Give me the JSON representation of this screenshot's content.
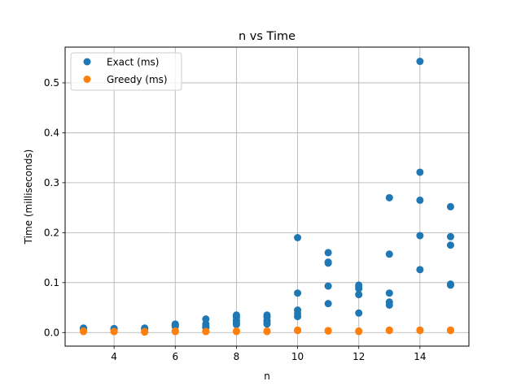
{
  "chart_data": {
    "type": "scatter",
    "title": "n vs Time",
    "xlabel": "n",
    "ylabel": "Time (milliseconds)",
    "xlim": [
      2.4,
      15.6
    ],
    "ylim": [
      -0.0272,
      0.5715
    ],
    "xticks": [
      4,
      6,
      8,
      10,
      12,
      14
    ],
    "yticks": [
      0.0,
      0.1,
      0.2,
      0.3,
      0.4,
      0.5
    ],
    "xtick_labels": [
      "4",
      "6",
      "8",
      "10",
      "12",
      "14"
    ],
    "ytick_labels": [
      "0.0",
      "0.1",
      "0.2",
      "0.3",
      "0.4",
      "0.5"
    ],
    "grid": true,
    "legend_position": "top-left",
    "series": [
      {
        "name": "Exact (ms)",
        "color": "#1f77b4",
        "x": [
          3,
          3,
          3,
          4,
          4,
          4,
          5,
          5,
          5,
          6,
          6,
          6,
          6,
          7,
          7,
          7,
          7,
          7,
          8,
          8,
          8,
          8,
          8,
          9,
          9,
          9,
          9,
          9,
          10,
          10,
          10,
          10,
          10,
          11,
          11,
          11,
          11,
          11,
          12,
          12,
          12,
          12,
          12,
          13,
          13,
          13,
          13,
          13,
          14,
          14,
          14,
          14,
          14,
          15,
          15,
          15,
          15,
          15
        ],
        "y": [
          0.009,
          0.008,
          0.007,
          0.008,
          0.007,
          0.007,
          0.009,
          0.008,
          0.007,
          0.017,
          0.015,
          0.014,
          0.012,
          0.027,
          0.017,
          0.013,
          0.012,
          0.01,
          0.035,
          0.031,
          0.024,
          0.019,
          0.016,
          0.035,
          0.031,
          0.024,
          0.02,
          0.017,
          0.19,
          0.079,
          0.045,
          0.038,
          0.032,
          0.16,
          0.141,
          0.139,
          0.093,
          0.058,
          0.095,
          0.092,
          0.088,
          0.076,
          0.039,
          0.27,
          0.157,
          0.079,
          0.061,
          0.055,
          0.543,
          0.321,
          0.265,
          0.194,
          0.126,
          0.252,
          0.192,
          0.175,
          0.097,
          0.095
        ]
      },
      {
        "name": "Greedy (ms)",
        "color": "#ff7f0e",
        "x": [
          3,
          3,
          4,
          4,
          5,
          5,
          6,
          6,
          7,
          7,
          8,
          8,
          9,
          9,
          10,
          10,
          11,
          11,
          12,
          12,
          13,
          13,
          14,
          14,
          15,
          15
        ],
        "y": [
          0.003,
          0.002,
          0.002,
          0.002,
          0.002,
          0.001,
          0.003,
          0.002,
          0.002,
          0.002,
          0.003,
          0.002,
          0.003,
          0.002,
          0.005,
          0.004,
          0.004,
          0.003,
          0.003,
          0.002,
          0.005,
          0.004,
          0.005,
          0.004,
          0.005,
          0.004
        ]
      }
    ]
  }
}
